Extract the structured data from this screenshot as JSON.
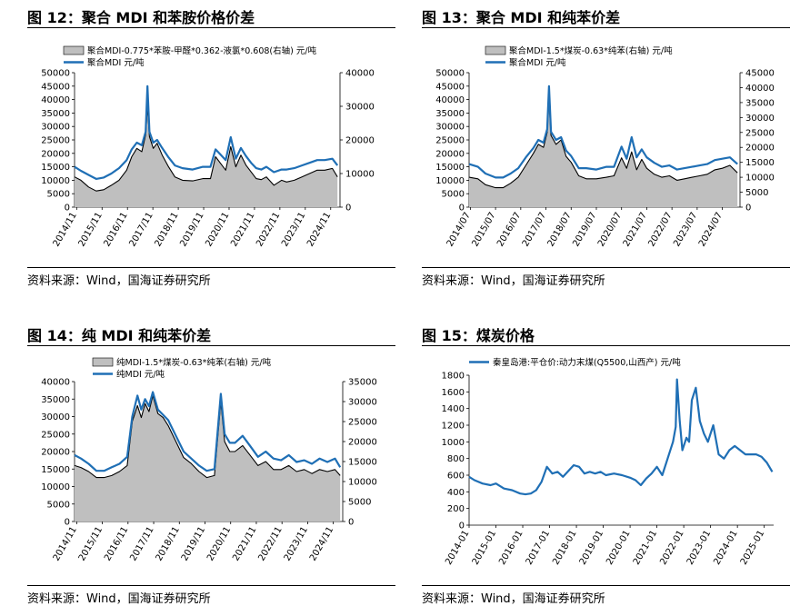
{
  "colors": {
    "line": "#1F6FB5",
    "area": "#BFBFBF",
    "dark": "#000000"
  },
  "chart_data": [
    {
      "id": "fig12",
      "figure_title": "图 12：聚合 MDI 和苯胺价格价差",
      "type": "line+area",
      "source": "资料来源：Wind，国海证券研究所",
      "legend": {
        "placement": "top",
        "items": [
          "聚合MDI-0.775*苯胺-甲醛*0.362-液氯*0.608(右轴) 元/吨",
          "聚合MDI 元/吨"
        ]
      },
      "x_ticks": [
        "2014/11",
        "2015/11",
        "2016/11",
        "2017/11",
        "2018/11",
        "2019/11",
        "2020/11",
        "2021/11",
        "2022/11",
        "2023/11",
        "2024/11"
      ],
      "x_range": [
        2014.75,
        2025.2
      ],
      "left_axis": {
        "range": [
          0,
          50000
        ],
        "ticks": [
          0,
          5000,
          10000,
          15000,
          20000,
          25000,
          30000,
          35000,
          40000,
          45000,
          50000
        ]
      },
      "right_axis": {
        "range": [
          0,
          40000
        ],
        "ticks": [
          0,
          10000,
          20000,
          30000,
          40000
        ]
      },
      "series": [
        {
          "name": "聚合MDI-0.775*苯胺-甲醛*0.362-液氯*0.608(右轴)",
          "kind": "area",
          "axis": "right",
          "x": [
            2014.75,
            2015.0,
            2015.3,
            2015.6,
            2015.9,
            2016.2,
            2016.5,
            2016.8,
            2017.0,
            2017.2,
            2017.4,
            2017.55,
            2017.62,
            2017.7,
            2017.85,
            2018.0,
            2018.2,
            2018.45,
            2018.7,
            2019.0,
            2019.4,
            2019.8,
            2020.1,
            2020.3,
            2020.5,
            2020.7,
            2020.9,
            2021.1,
            2021.3,
            2021.5,
            2021.7,
            2021.9,
            2022.1,
            2022.3,
            2022.6,
            2022.9,
            2023.1,
            2023.4,
            2023.7,
            2024.0,
            2024.3,
            2024.6,
            2024.9,
            2025.1
          ],
          "y": [
            9000,
            8000,
            6000,
            4800,
            5200,
            6500,
            8000,
            11000,
            15000,
            17500,
            16500,
            21500,
            30000,
            21000,
            17500,
            19000,
            15500,
            12000,
            9000,
            8000,
            7800,
            8500,
            8500,
            15000,
            13000,
            11000,
            18000,
            12000,
            15500,
            12500,
            10500,
            8500,
            8200,
            9000,
            6500,
            8000,
            7500,
            8000,
            9000,
            10000,
            11000,
            11000,
            11500,
            9000
          ]
        },
        {
          "name": "聚合MDI",
          "kind": "line",
          "axis": "left",
          "x": [
            2014.75,
            2015.0,
            2015.3,
            2015.6,
            2015.9,
            2016.2,
            2016.5,
            2016.8,
            2017.0,
            2017.2,
            2017.4,
            2017.55,
            2017.62,
            2017.7,
            2017.85,
            2018.0,
            2018.2,
            2018.45,
            2018.7,
            2019.0,
            2019.4,
            2019.8,
            2020.1,
            2020.3,
            2020.5,
            2020.7,
            2020.9,
            2021.1,
            2021.3,
            2021.5,
            2021.7,
            2021.9,
            2022.1,
            2022.3,
            2022.6,
            2022.9,
            2023.1,
            2023.4,
            2023.7,
            2024.0,
            2024.3,
            2024.6,
            2024.9,
            2025.1
          ],
          "y": [
            15000,
            13500,
            12000,
            10500,
            11000,
            12500,
            14500,
            17500,
            21500,
            24000,
            23000,
            28000,
            45000,
            28000,
            24000,
            25000,
            22000,
            18500,
            15500,
            14500,
            14000,
            15000,
            15000,
            21500,
            19500,
            17500,
            26000,
            18000,
            22000,
            19000,
            16500,
            14500,
            14000,
            15000,
            13000,
            14000,
            14000,
            14500,
            15500,
            16500,
            17500,
            17500,
            18000,
            15500
          ]
        }
      ]
    },
    {
      "id": "fig13",
      "figure_title": "图 13：聚合 MDI 和纯苯价差",
      "type": "line+area",
      "source": "资料来源：Wind，国海证券研究所",
      "legend": {
        "placement": "top",
        "items": [
          "聚合MDI-1.5*煤炭-0.63*纯苯(右轴) 元/吨",
          "聚合MDI 元/吨"
        ]
      },
      "x_ticks": [
        "2014/07",
        "2015/07",
        "2016/07",
        "2017/07",
        "2018/07",
        "2019/07",
        "2020/07",
        "2021/07",
        "2022/07",
        "2023/07",
        "2024/07"
      ],
      "x_range": [
        2014.45,
        2025.2
      ],
      "left_axis": {
        "range": [
          0,
          50000
        ],
        "ticks": [
          0,
          5000,
          10000,
          15000,
          20000,
          25000,
          30000,
          35000,
          40000,
          45000,
          50000
        ]
      },
      "right_axis": {
        "range": [
          0,
          45000
        ],
        "ticks": [
          0,
          5000,
          10000,
          15000,
          20000,
          25000,
          30000,
          35000,
          40000,
          45000
        ]
      },
      "series": [
        {
          "name": "聚合MDI-1.5*煤炭-0.63*纯苯(右轴)",
          "kind": "area",
          "axis": "right",
          "x": [
            2014.45,
            2014.8,
            2015.1,
            2015.5,
            2015.8,
            2016.1,
            2016.4,
            2016.7,
            2017.0,
            2017.2,
            2017.4,
            2017.55,
            2017.62,
            2017.7,
            2017.9,
            2018.1,
            2018.3,
            2018.5,
            2018.8,
            2019.1,
            2019.5,
            2019.9,
            2020.2,
            2020.5,
            2020.7,
            2020.9,
            2021.1,
            2021.3,
            2021.5,
            2021.8,
            2022.1,
            2022.4,
            2022.7,
            2023.0,
            2023.3,
            2023.6,
            2023.9,
            2024.2,
            2024.5,
            2024.8,
            2025.1
          ],
          "y": [
            10000,
            9500,
            7500,
            6500,
            6500,
            8000,
            10000,
            14000,
            18000,
            21000,
            20000,
            25000,
            36000,
            24000,
            21000,
            22500,
            17000,
            15000,
            10500,
            9500,
            9500,
            10000,
            10500,
            16500,
            13000,
            18500,
            12500,
            16000,
            13000,
            11000,
            10000,
            10500,
            9000,
            9500,
            10000,
            10500,
            11000,
            12500,
            13000,
            14000,
            11500
          ]
        },
        {
          "name": "聚合MDI",
          "kind": "line",
          "axis": "left",
          "x": [
            2014.45,
            2014.8,
            2015.1,
            2015.5,
            2015.8,
            2016.1,
            2016.4,
            2016.7,
            2017.0,
            2017.2,
            2017.4,
            2017.55,
            2017.62,
            2017.7,
            2017.9,
            2018.1,
            2018.3,
            2018.5,
            2018.8,
            2019.1,
            2019.5,
            2019.9,
            2020.2,
            2020.5,
            2020.7,
            2020.9,
            2021.1,
            2021.3,
            2021.5,
            2021.8,
            2022.1,
            2022.4,
            2022.7,
            2023.0,
            2023.3,
            2023.6,
            2023.9,
            2024.2,
            2024.5,
            2024.8,
            2025.1
          ],
          "y": [
            16000,
            15000,
            12500,
            11000,
            11000,
            12500,
            14500,
            18500,
            22000,
            25000,
            24000,
            29000,
            45000,
            28000,
            25000,
            26000,
            21000,
            19000,
            14500,
            14500,
            14000,
            15000,
            15000,
            22500,
            18000,
            26000,
            18500,
            21500,
            18500,
            16500,
            15000,
            15500,
            14000,
            14500,
            15000,
            15500,
            16000,
            17500,
            18000,
            18500,
            16000
          ]
        }
      ]
    },
    {
      "id": "fig14",
      "figure_title": "图 14：纯 MDI 和纯苯价差",
      "type": "line+area",
      "source": "资料来源：Wind，国海证券研究所",
      "legend": {
        "placement": "top",
        "items": [
          "纯MDI-1.5*煤炭-0.63*纯苯(右轴) 元/吨",
          "纯MDI 元/吨"
        ]
      },
      "x_ticks": [
        "2014/11",
        "2015/11",
        "2016/11",
        "2017/11",
        "2018/11",
        "2019/11",
        "2020/11",
        "2021/11",
        "2022/11",
        "2023/11",
        "2024/11"
      ],
      "x_range": [
        2014.75,
        2025.2
      ],
      "left_axis": {
        "range": [
          0,
          40000
        ],
        "ticks": [
          0,
          5000,
          10000,
          15000,
          20000,
          25000,
          30000,
          35000,
          40000
        ]
      },
      "right_axis": {
        "range": [
          0,
          35000
        ],
        "ticks": [
          0,
          5000,
          10000,
          15000,
          20000,
          25000,
          30000,
          35000
        ]
      },
      "series": [
        {
          "name": "纯MDI-1.5*煤炭-0.63*纯苯(右轴)",
          "kind": "area",
          "axis": "right",
          "x": [
            2014.75,
            2015.0,
            2015.3,
            2015.6,
            2015.9,
            2016.2,
            2016.5,
            2016.8,
            2017.0,
            2017.2,
            2017.35,
            2017.5,
            2017.65,
            2017.8,
            2018.0,
            2018.2,
            2018.4,
            2018.7,
            2019.0,
            2019.3,
            2019.6,
            2019.9,
            2020.2,
            2020.45,
            2020.6,
            2020.8,
            2021.0,
            2021.3,
            2021.6,
            2021.9,
            2022.2,
            2022.5,
            2022.8,
            2023.1,
            2023.4,
            2023.7,
            2024.0,
            2024.3,
            2024.6,
            2024.9,
            2025.1
          ],
          "y": [
            14000,
            13500,
            12500,
            11000,
            11000,
            11500,
            12500,
            14000,
            25000,
            29000,
            26000,
            29500,
            27500,
            31500,
            27000,
            26000,
            24000,
            20000,
            16000,
            14500,
            12500,
            11000,
            11500,
            30000,
            20000,
            17500,
            17500,
            19000,
            16500,
            14000,
            15000,
            13000,
            13000,
            14000,
            12500,
            13000,
            12000,
            13000,
            12500,
            13000,
            11500
          ]
        },
        {
          "name": "纯MDI",
          "kind": "line",
          "axis": "left",
          "x": [
            2014.75,
            2015.0,
            2015.3,
            2015.6,
            2015.9,
            2016.2,
            2016.5,
            2016.8,
            2017.0,
            2017.2,
            2017.35,
            2017.5,
            2017.65,
            2017.8,
            2018.0,
            2018.2,
            2018.4,
            2018.7,
            2019.0,
            2019.3,
            2019.6,
            2019.9,
            2020.2,
            2020.45,
            2020.6,
            2020.8,
            2021.0,
            2021.3,
            2021.6,
            2021.9,
            2022.2,
            2022.5,
            2022.8,
            2023.1,
            2023.4,
            2023.7,
            2024.0,
            2024.3,
            2024.6,
            2024.9,
            2025.1
          ],
          "y": [
            19000,
            18000,
            16500,
            14500,
            14500,
            15500,
            16500,
            18500,
            30000,
            36000,
            32000,
            35000,
            33000,
            37000,
            32000,
            30500,
            29000,
            24500,
            20000,
            18000,
            16000,
            14500,
            15000,
            36500,
            25000,
            22500,
            22500,
            24500,
            21500,
            18500,
            20000,
            18000,
            17500,
            19000,
            17000,
            17500,
            16500,
            18000,
            17000,
            18000,
            15500
          ]
        }
      ]
    },
    {
      "id": "fig15",
      "figure_title": "图 15：煤炭价格",
      "type": "line",
      "source": "资料来源：Wind，国海证券研究所",
      "legend": {
        "placement": "top-left",
        "items": [
          "秦皇岛港:平仓价:动力末煤(Q5500,山西产) 元/吨"
        ]
      },
      "x_ticks": [
        "2014-01",
        "2015-01",
        "2016-01",
        "2017-01",
        "2018-01",
        "2019-01",
        "2020-01",
        "2021-01",
        "2022-01",
        "2023-01",
        "2024-01",
        "2025-01"
      ],
      "x_range": [
        2014.0,
        2025.35
      ],
      "left_axis": {
        "range": [
          0,
          1800
        ],
        "ticks": [
          0,
          200,
          400,
          600,
          800,
          1000,
          1200,
          1400,
          1600,
          1800
        ]
      },
      "series": [
        {
          "name": "秦皇岛港:平仓价:动力末煤(Q5500,山西产)",
          "kind": "line",
          "axis": "left",
          "x": [
            2014.0,
            2014.2,
            2014.5,
            2014.8,
            2015.0,
            2015.3,
            2015.6,
            2015.9,
            2016.1,
            2016.3,
            2016.5,
            2016.7,
            2016.9,
            2017.1,
            2017.3,
            2017.5,
            2017.7,
            2017.9,
            2018.1,
            2018.3,
            2018.5,
            2018.7,
            2018.9,
            2019.1,
            2019.4,
            2019.7,
            2020.0,
            2020.2,
            2020.4,
            2020.6,
            2020.8,
            2021.0,
            2021.2,
            2021.4,
            2021.6,
            2021.7,
            2021.75,
            2021.85,
            2021.95,
            2022.1,
            2022.2,
            2022.3,
            2022.45,
            2022.6,
            2022.75,
            2022.9,
            2023.1,
            2023.3,
            2023.5,
            2023.7,
            2023.9,
            2024.1,
            2024.3,
            2024.5,
            2024.7,
            2024.9,
            2025.1,
            2025.3
          ],
          "y": [
            580,
            540,
            500,
            480,
            500,
            440,
            420,
            380,
            370,
            380,
            420,
            520,
            700,
            620,
            640,
            580,
            650,
            720,
            700,
            620,
            640,
            620,
            640,
            600,
            620,
            600,
            570,
            540,
            480,
            560,
            620,
            700,
            600,
            800,
            1000,
            1180,
            1750,
            1250,
            900,
            1050,
            1000,
            1500,
            1650,
            1250,
            1100,
            1000,
            1200,
            850,
            800,
            900,
            950,
            900,
            850,
            850,
            850,
            820,
            750,
            640
          ]
        }
      ]
    }
  ]
}
